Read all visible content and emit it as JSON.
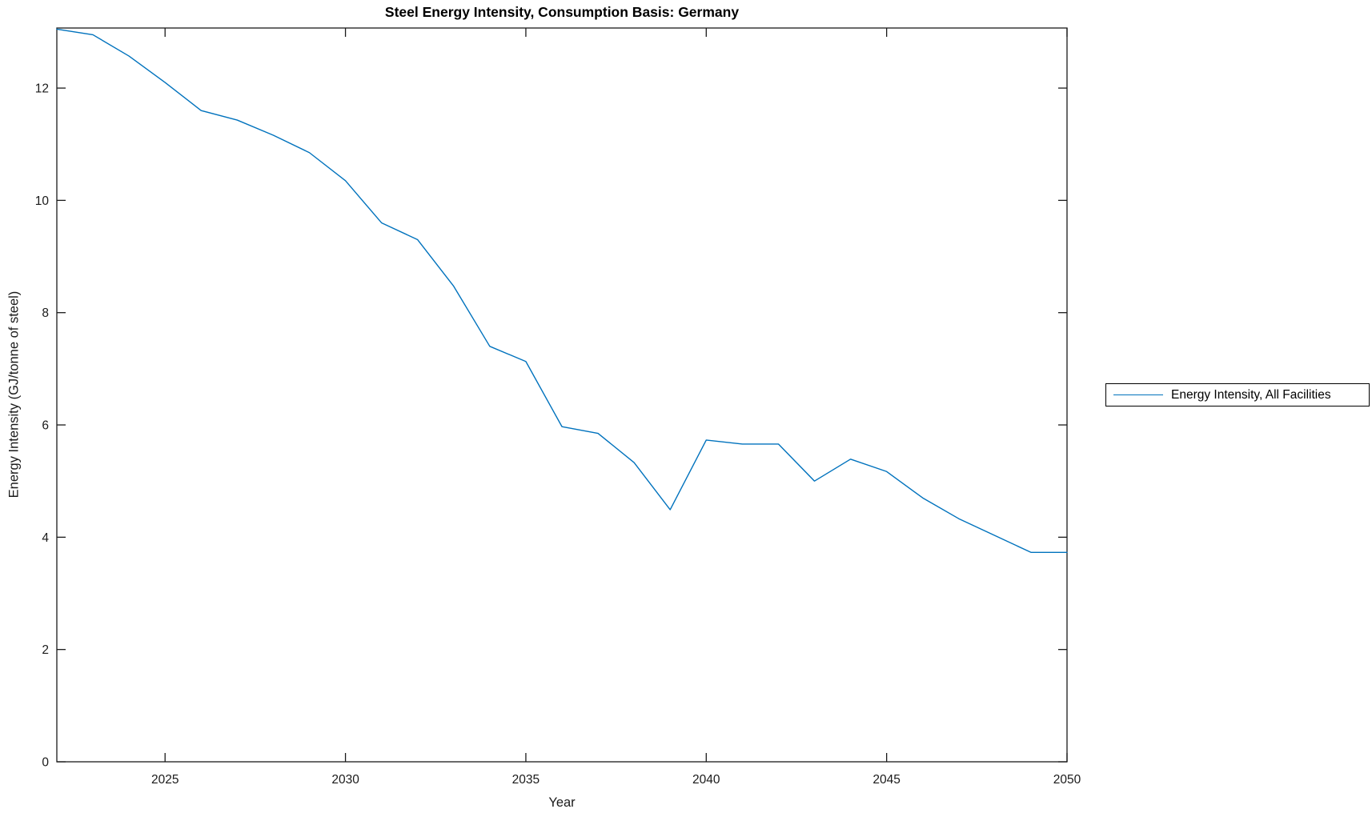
{
  "chart_data": {
    "type": "line",
    "title": "Steel Energy Intensity, Consumption Basis: Germany",
    "xlabel": "Year",
    "ylabel": "Energy Intensity (GJ/tonne of steel)",
    "xlim": [
      2022,
      2050
    ],
    "ylim": [
      0,
      13.07
    ],
    "x_ticks": [
      2025,
      2030,
      2035,
      2040,
      2045,
      2050
    ],
    "y_ticks": [
      0,
      2,
      4,
      6,
      8,
      10,
      12
    ],
    "grid": false,
    "box": true,
    "tick_direction": "in",
    "legend_position": "right-outside",
    "axis_color": "#1a1a1a",
    "series": [
      {
        "name": "Energy Intensity, All Facilities",
        "color": "#0072BD",
        "x": [
          2022,
          2023,
          2024,
          2025,
          2026,
          2027,
          2028,
          2029,
          2030,
          2031,
          2032,
          2033,
          2034,
          2035,
          2036,
          2037,
          2038,
          2039,
          2040,
          2041,
          2042,
          2043,
          2044,
          2045,
          2046,
          2047,
          2048,
          2049,
          2050
        ],
        "values": [
          13.05,
          12.95,
          12.57,
          12.1,
          11.6,
          11.43,
          11.16,
          10.85,
          10.35,
          9.6,
          9.3,
          8.47,
          7.4,
          7.13,
          5.97,
          5.85,
          5.33,
          4.49,
          5.73,
          5.66,
          5.66,
          5.0,
          5.39,
          5.17,
          4.7,
          4.33,
          4.03,
          3.73,
          3.73
        ]
      }
    ]
  }
}
